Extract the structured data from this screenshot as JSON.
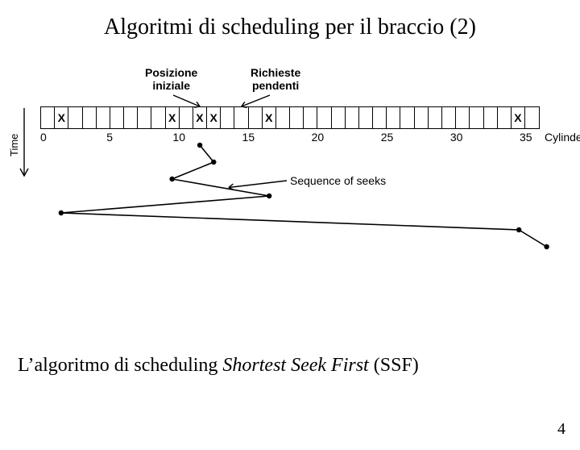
{
  "title": "Algoritmi di scheduling per il braccio (2)",
  "annotations": {
    "initial": {
      "line1": "Posizione",
      "line2": "iniziale"
    },
    "pending": {
      "line1": "Richieste",
      "line2": "pendenti"
    }
  },
  "chart": {
    "num_cells": 36,
    "track_width": 620,
    "marked_cylinders": [
      1,
      9,
      11,
      12,
      16,
      34,
      36
    ],
    "mark_glyph": "X",
    "tick_labels": [
      "0",
      "5",
      "10",
      "15",
      "20",
      "25",
      "30",
      "35"
    ],
    "tick_positions": [
      0,
      5,
      10,
      15,
      20,
      25,
      30,
      35
    ],
    "axis_right_label": "Cylinder",
    "time_label": "Time",
    "sequence_label": "Sequence of seeks",
    "seek_start_cylinder": 11,
    "seek_sequence": [
      12,
      9,
      16,
      1,
      34,
      36
    ],
    "seek_y_step": 21,
    "colors": {
      "line": "#000000",
      "bg": "#ffffff"
    }
  },
  "caption_prefix": "L’algoritmo di scheduling ",
  "caption_italic": "Shortest Seek First",
  "caption_suffix": " (SSF)",
  "page_number": "4"
}
